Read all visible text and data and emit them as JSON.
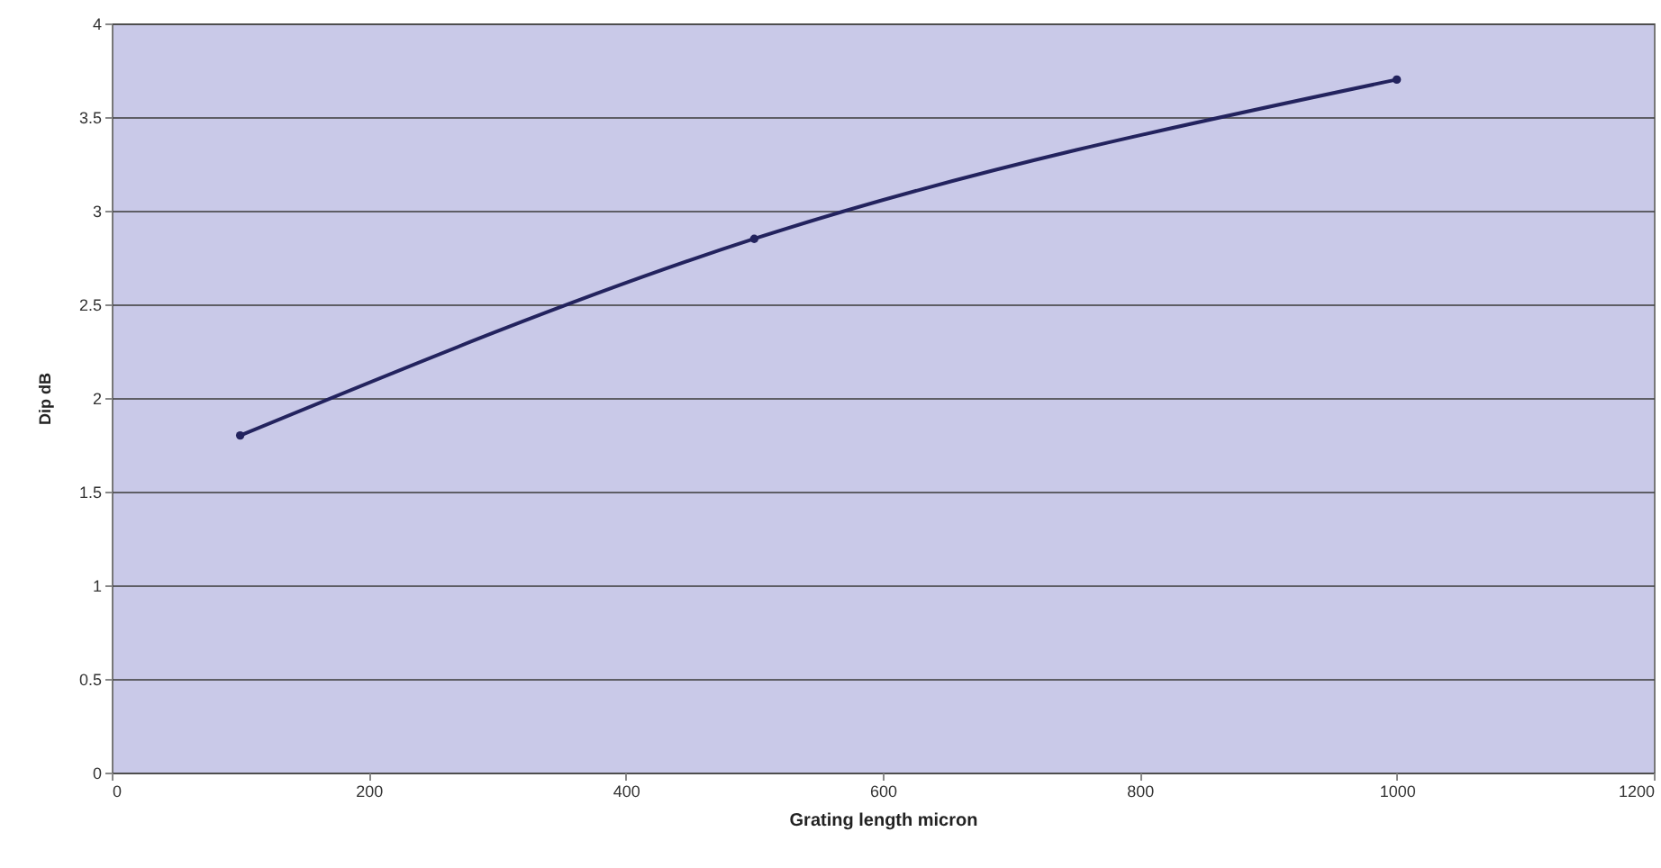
{
  "chart_data": {
    "type": "line",
    "xlabel": "Grating length micron",
    "ylabel": "Dip dB",
    "x": [
      100,
      500,
      1000
    ],
    "series": [
      {
        "color": "#23235e",
        "values": [
          1.8,
          2.85,
          3.7
        ]
      }
    ],
    "xlim": [
      0,
      1200
    ],
    "xticks": [
      0,
      200,
      400,
      600,
      800,
      1000,
      1200
    ],
    "ylim": [
      0,
      4
    ],
    "yticks": [
      0,
      0.5,
      1,
      1.5,
      2,
      2.5,
      3,
      3.5,
      4
    ],
    "grid": "y",
    "marker": "circle",
    "line_style": "solid"
  }
}
